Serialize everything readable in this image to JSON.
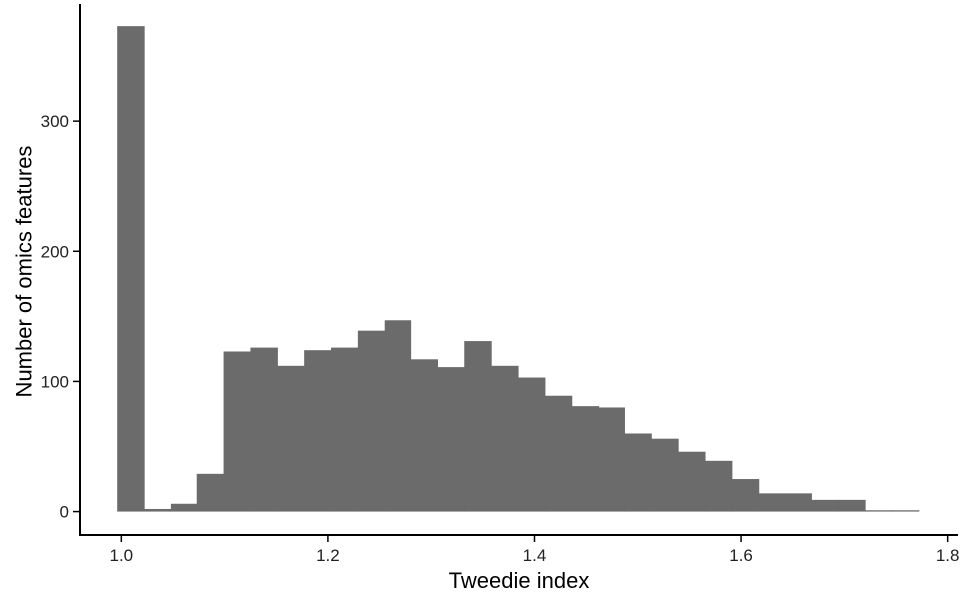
{
  "chart_data": {
    "type": "bar",
    "subtype": "histogram",
    "xlabel": "Tweedie index",
    "ylabel": "Number of omics features",
    "xlim": [
      0.96,
      1.81
    ],
    "ylim": [
      -18,
      390
    ],
    "x_ticks": [
      1.0,
      1.2,
      1.4,
      1.6,
      1.8
    ],
    "x_tick_labels": [
      "1.0",
      "1.2",
      "1.4",
      "1.6",
      "1.8"
    ],
    "y_ticks": [
      0,
      100,
      200,
      300
    ],
    "y_tick_labels": [
      "0",
      "100",
      "200",
      "300"
    ],
    "bin_width": 0.0259,
    "bins": [
      {
        "x0": 0.996,
        "x1": 1.022,
        "count": 373
      },
      {
        "x0": 1.022,
        "x1": 1.048,
        "count": 2
      },
      {
        "x0": 1.048,
        "x1": 1.073,
        "count": 6
      },
      {
        "x0": 1.073,
        "x1": 1.099,
        "count": 29
      },
      {
        "x0": 1.099,
        "x1": 1.125,
        "count": 123
      },
      {
        "x0": 1.125,
        "x1": 1.151,
        "count": 126
      },
      {
        "x0": 1.151,
        "x1": 1.177,
        "count": 112
      },
      {
        "x0": 1.177,
        "x1": 1.203,
        "count": 124
      },
      {
        "x0": 1.203,
        "x1": 1.229,
        "count": 126
      },
      {
        "x0": 1.229,
        "x1": 1.255,
        "count": 139
      },
      {
        "x0": 1.255,
        "x1": 1.28,
        "count": 147
      },
      {
        "x0": 1.28,
        "x1": 1.306,
        "count": 117
      },
      {
        "x0": 1.306,
        "x1": 1.332,
        "count": 111
      },
      {
        "x0": 1.332,
        "x1": 1.358,
        "count": 131
      },
      {
        "x0": 1.358,
        "x1": 1.384,
        "count": 112
      },
      {
        "x0": 1.384,
        "x1": 1.41,
        "count": 103
      },
      {
        "x0": 1.41,
        "x1": 1.436,
        "count": 89
      },
      {
        "x0": 1.436,
        "x1": 1.462,
        "count": 81
      },
      {
        "x0": 1.462,
        "x1": 1.487,
        "count": 80
      },
      {
        "x0": 1.487,
        "x1": 1.513,
        "count": 60
      },
      {
        "x0": 1.513,
        "x1": 1.539,
        "count": 56
      },
      {
        "x0": 1.539,
        "x1": 1.565,
        "count": 46
      },
      {
        "x0": 1.565,
        "x1": 1.591,
        "count": 39
      },
      {
        "x0": 1.591,
        "x1": 1.617,
        "count": 25
      },
      {
        "x0": 1.617,
        "x1": 1.643,
        "count": 14
      },
      {
        "x0": 1.643,
        "x1": 1.668,
        "count": 14
      },
      {
        "x0": 1.668,
        "x1": 1.694,
        "count": 9
      },
      {
        "x0": 1.694,
        "x1": 1.72,
        "count": 9
      },
      {
        "x0": 1.72,
        "x1": 1.746,
        "count": 1
      },
      {
        "x0": 1.746,
        "x1": 1.772,
        "count": 1
      }
    ],
    "bar_color": "#6b6b6b",
    "axis_color": "#000000",
    "grid": false,
    "legend": "none"
  }
}
